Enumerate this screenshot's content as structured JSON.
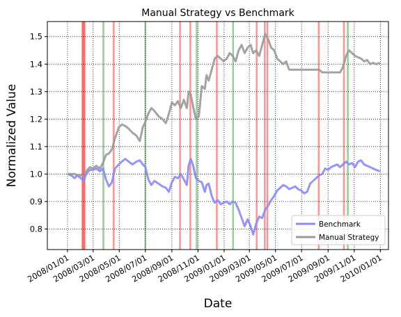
{
  "chart_data": {
    "type": "line",
    "title": "Manual Strategy vs Benchmark",
    "xlabel": "Date",
    "ylabel": "Normalized Value",
    "xlim": [
      "2007-11-15",
      "2010-01-20"
    ],
    "ylim": [
      0.725,
      1.555
    ],
    "x_ticks": [
      "2008/01/01",
      "2008/03/01",
      "2008/05/01",
      "2008/07/01",
      "2008/09/01",
      "2008/11/01",
      "2009/01/01",
      "2009/03/01",
      "2009/05/01",
      "2009/07/01",
      "2009/09/01",
      "2009/11/01",
      "2010/01/01"
    ],
    "y_ticks": [
      0.8,
      0.9,
      1.0,
      1.1,
      1.2,
      1.3,
      1.4,
      1.5
    ],
    "grid": true,
    "grid_style": "dotted",
    "legend_position": "lower right",
    "series": [
      {
        "name": "Benchmark",
        "color": "#8888ff",
        "points": [
          [
            "2008-01-02",
            1.0
          ],
          [
            "2008-01-10",
            0.995
          ],
          [
            "2008-01-18",
            0.985
          ],
          [
            "2008-01-24",
            0.995
          ],
          [
            "2008-02-01",
            0.985
          ],
          [
            "2008-02-08",
            0.975
          ],
          [
            "2008-02-14",
            1.0
          ],
          [
            "2008-02-22",
            1.015
          ],
          [
            "2008-03-01",
            1.015
          ],
          [
            "2008-03-08",
            1.02
          ],
          [
            "2008-03-17",
            1.01
          ],
          [
            "2008-03-24",
            1.02
          ],
          [
            "2008-03-31",
            0.98
          ],
          [
            "2008-04-07",
            0.955
          ],
          [
            "2008-04-14",
            0.97
          ],
          [
            "2008-04-21",
            1.02
          ],
          [
            "2008-04-30",
            1.035
          ],
          [
            "2008-05-07",
            1.045
          ],
          [
            "2008-05-15",
            1.055
          ],
          [
            "2008-05-23",
            1.045
          ],
          [
            "2008-06-01",
            1.035
          ],
          [
            "2008-06-10",
            1.045
          ],
          [
            "2008-06-18",
            1.05
          ],
          [
            "2008-06-25",
            1.035
          ],
          [
            "2008-07-01",
            1.025
          ],
          [
            "2008-07-08",
            0.98
          ],
          [
            "2008-07-15",
            0.96
          ],
          [
            "2008-07-22",
            0.975
          ],
          [
            "2008-08-01",
            0.965
          ],
          [
            "2008-08-10",
            0.955
          ],
          [
            "2008-08-18",
            0.95
          ],
          [
            "2008-08-25",
            0.935
          ],
          [
            "2008-09-01",
            0.97
          ],
          [
            "2008-09-08",
            0.99
          ],
          [
            "2008-09-15",
            0.985
          ],
          [
            "2008-09-22",
            1.0
          ],
          [
            "2008-09-29",
            0.98
          ],
          [
            "2008-10-06",
            0.96
          ],
          [
            "2008-10-10",
            1.03
          ],
          [
            "2008-10-15",
            1.055
          ],
          [
            "2008-10-20",
            1.035
          ],
          [
            "2008-10-27",
            0.985
          ],
          [
            "2008-11-03",
            0.975
          ],
          [
            "2008-11-10",
            0.97
          ],
          [
            "2008-11-17",
            0.935
          ],
          [
            "2008-11-21",
            0.96
          ],
          [
            "2008-11-26",
            0.965
          ],
          [
            "2008-12-03",
            0.92
          ],
          [
            "2008-12-10",
            0.895
          ],
          [
            "2008-12-17",
            0.905
          ],
          [
            "2008-12-24",
            0.89
          ],
          [
            "2008-12-31",
            0.895
          ],
          [
            "2009-01-07",
            0.9
          ],
          [
            "2009-01-14",
            0.89
          ],
          [
            "2009-01-21",
            0.9
          ],
          [
            "2009-01-28",
            0.895
          ],
          [
            "2009-02-04",
            0.87
          ],
          [
            "2009-02-11",
            0.84
          ],
          [
            "2009-02-18",
            0.81
          ],
          [
            "2009-02-25",
            0.835
          ],
          [
            "2009-03-04",
            0.81
          ],
          [
            "2009-03-10",
            0.78
          ],
          [
            "2009-03-17",
            0.82
          ],
          [
            "2009-03-24",
            0.845
          ],
          [
            "2009-03-31",
            0.84
          ],
          [
            "2009-04-07",
            0.87
          ],
          [
            "2009-04-14",
            0.885
          ],
          [
            "2009-04-21",
            0.905
          ],
          [
            "2009-04-28",
            0.92
          ],
          [
            "2009-05-05",
            0.94
          ],
          [
            "2009-05-12",
            0.95
          ],
          [
            "2009-05-19",
            0.96
          ],
          [
            "2009-05-26",
            0.955
          ],
          [
            "2009-06-02",
            0.945
          ],
          [
            "2009-06-09",
            0.95
          ],
          [
            "2009-06-16",
            0.955
          ],
          [
            "2009-06-23",
            0.945
          ],
          [
            "2009-06-30",
            0.94
          ],
          [
            "2009-07-07",
            0.93
          ],
          [
            "2009-07-14",
            0.935
          ],
          [
            "2009-07-21",
            0.965
          ],
          [
            "2009-07-28",
            0.975
          ],
          [
            "2009-08-04",
            0.985
          ],
          [
            "2009-08-11",
            0.995
          ],
          [
            "2009-08-18",
            1.0
          ],
          [
            "2009-08-25",
            1.02
          ],
          [
            "2009-09-01",
            1.015
          ],
          [
            "2009-09-08",
            1.025
          ],
          [
            "2009-09-15",
            1.03
          ],
          [
            "2009-09-22",
            1.035
          ],
          [
            "2009-09-29",
            1.025
          ],
          [
            "2009-10-06",
            1.035
          ],
          [
            "2009-10-13",
            1.045
          ],
          [
            "2009-10-20",
            1.035
          ],
          [
            "2009-10-27",
            1.04
          ],
          [
            "2009-11-03",
            1.025
          ],
          [
            "2009-11-10",
            1.045
          ],
          [
            "2009-11-17",
            1.05
          ],
          [
            "2009-11-24",
            1.035
          ],
          [
            "2009-12-01",
            1.03
          ],
          [
            "2009-12-08",
            1.025
          ],
          [
            "2009-12-15",
            1.02
          ],
          [
            "2009-12-22",
            1.015
          ],
          [
            "2009-12-31",
            1.01
          ]
        ]
      },
      {
        "name": "Manual Strategy",
        "color": "#999999",
        "points": [
          [
            "2008-01-02",
            1.0
          ],
          [
            "2008-01-10",
            1.0
          ],
          [
            "2008-01-18",
            1.0
          ],
          [
            "2008-01-24",
            0.995
          ],
          [
            "2008-02-01",
            0.995
          ],
          [
            "2008-02-08",
            0.995
          ],
          [
            "2008-02-14",
            1.01
          ],
          [
            "2008-02-22",
            1.025
          ],
          [
            "2008-03-01",
            1.02
          ],
          [
            "2008-03-08",
            1.03
          ],
          [
            "2008-03-17",
            1.02
          ],
          [
            "2008-03-24",
            1.04
          ],
          [
            "2008-03-31",
            1.07
          ],
          [
            "2008-04-07",
            1.075
          ],
          [
            "2008-04-14",
            1.09
          ],
          [
            "2008-04-21",
            1.13
          ],
          [
            "2008-04-30",
            1.17
          ],
          [
            "2008-05-07",
            1.18
          ],
          [
            "2008-05-15",
            1.175
          ],
          [
            "2008-05-23",
            1.165
          ],
          [
            "2008-06-01",
            1.15
          ],
          [
            "2008-06-10",
            1.14
          ],
          [
            "2008-06-18",
            1.12
          ],
          [
            "2008-06-25",
            1.17
          ],
          [
            "2008-07-01",
            1.19
          ],
          [
            "2008-07-08",
            1.22
          ],
          [
            "2008-07-15",
            1.24
          ],
          [
            "2008-07-22",
            1.23
          ],
          [
            "2008-08-01",
            1.21
          ],
          [
            "2008-08-10",
            1.2
          ],
          [
            "2008-08-18",
            1.185
          ],
          [
            "2008-08-25",
            1.22
          ],
          [
            "2008-09-01",
            1.26
          ],
          [
            "2008-09-08",
            1.25
          ],
          [
            "2008-09-15",
            1.265
          ],
          [
            "2008-09-22",
            1.24
          ],
          [
            "2008-09-29",
            1.27
          ],
          [
            "2008-10-06",
            1.24
          ],
          [
            "2008-10-10",
            1.3
          ],
          [
            "2008-10-15",
            1.29
          ],
          [
            "2008-10-20",
            1.25
          ],
          [
            "2008-10-27",
            1.2
          ],
          [
            "2008-11-03",
            1.21
          ],
          [
            "2008-11-10",
            1.32
          ],
          [
            "2008-11-17",
            1.31
          ],
          [
            "2008-11-21",
            1.36
          ],
          [
            "2008-11-26",
            1.34
          ],
          [
            "2008-12-03",
            1.38
          ],
          [
            "2008-12-10",
            1.42
          ],
          [
            "2008-12-17",
            1.43
          ],
          [
            "2008-12-24",
            1.42
          ],
          [
            "2008-12-31",
            1.41
          ],
          [
            "2009-01-07",
            1.42
          ],
          [
            "2009-01-14",
            1.44
          ],
          [
            "2009-01-21",
            1.43
          ],
          [
            "2009-01-28",
            1.41
          ],
          [
            "2009-02-04",
            1.45
          ],
          [
            "2009-02-11",
            1.47
          ],
          [
            "2009-02-18",
            1.44
          ],
          [
            "2009-02-25",
            1.46
          ],
          [
            "2009-03-04",
            1.47
          ],
          [
            "2009-03-10",
            1.44
          ],
          [
            "2009-03-17",
            1.45
          ],
          [
            "2009-03-24",
            1.43
          ],
          [
            "2009-03-31",
            1.47
          ],
          [
            "2009-04-07",
            1.51
          ],
          [
            "2009-04-14",
            1.49
          ],
          [
            "2009-04-21",
            1.46
          ],
          [
            "2009-04-28",
            1.45
          ],
          [
            "2009-05-05",
            1.42
          ],
          [
            "2009-05-12",
            1.41
          ],
          [
            "2009-05-19",
            1.4
          ],
          [
            "2009-05-26",
            1.41
          ],
          [
            "2009-06-02",
            1.38
          ],
          [
            "2009-06-09",
            1.38
          ],
          [
            "2009-06-16",
            1.38
          ],
          [
            "2009-06-23",
            1.38
          ],
          [
            "2009-06-30",
            1.38
          ],
          [
            "2009-07-07",
            1.38
          ],
          [
            "2009-07-14",
            1.38
          ],
          [
            "2009-07-21",
            1.38
          ],
          [
            "2009-07-28",
            1.38
          ],
          [
            "2009-08-04",
            1.38
          ],
          [
            "2009-08-11",
            1.38
          ],
          [
            "2009-08-18",
            1.37
          ],
          [
            "2009-08-25",
            1.37
          ],
          [
            "2009-09-01",
            1.37
          ],
          [
            "2009-09-08",
            1.37
          ],
          [
            "2009-09-15",
            1.37
          ],
          [
            "2009-09-22",
            1.37
          ],
          [
            "2009-09-29",
            1.37
          ],
          [
            "2009-10-06",
            1.39
          ],
          [
            "2009-10-13",
            1.43
          ],
          [
            "2009-10-20",
            1.45
          ],
          [
            "2009-10-27",
            1.44
          ],
          [
            "2009-11-03",
            1.43
          ],
          [
            "2009-11-10",
            1.425
          ],
          [
            "2009-11-17",
            1.42
          ],
          [
            "2009-11-24",
            1.41
          ],
          [
            "2009-12-01",
            1.415
          ],
          [
            "2009-12-08",
            1.4
          ],
          [
            "2009-12-15",
            1.405
          ],
          [
            "2009-12-22",
            1.4
          ],
          [
            "2009-12-31",
            1.405
          ]
        ]
      }
    ],
    "signals": {
      "short": {
        "color": "#ff6666",
        "dates": [
          "2008-02-05",
          "2008-02-06",
          "2008-02-07",
          "2008-02-08",
          "2008-02-09",
          "2008-02-10",
          "2008-04-18",
          "2008-09-20",
          "2008-10-14",
          "2008-12-15",
          "2009-03-18",
          "2009-04-06",
          "2009-04-12",
          "2009-08-10",
          "2009-10-08"
        ]
      },
      "long": {
        "color": "#66bb66",
        "dates": [
          "2008-03-25",
          "2008-07-01",
          "2008-10-29",
          "2009-01-22",
          "2009-10-17"
        ]
      }
    }
  }
}
